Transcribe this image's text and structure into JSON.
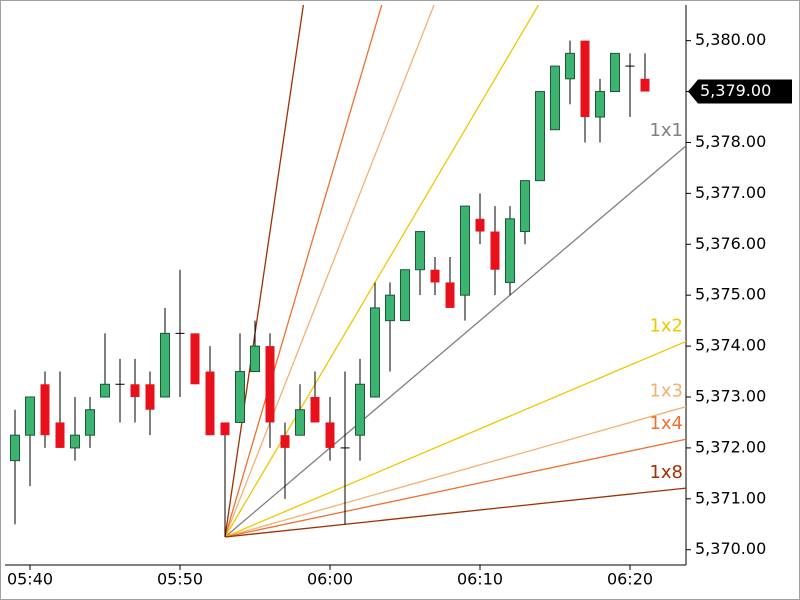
{
  "chart_data": {
    "type": "candlestick",
    "categories": [
      null,
      "05:40",
      null,
      null,
      null,
      null,
      null,
      null,
      null,
      null,
      null,
      "05:50",
      null,
      null,
      null,
      null,
      null,
      null,
      null,
      null,
      null,
      "06:00",
      null,
      null,
      null,
      null,
      null,
      null,
      null,
      null,
      null,
      "06:10",
      null,
      null,
      null,
      null,
      null,
      null,
      null,
      null,
      null,
      "06:20",
      null
    ],
    "open": [
      5371.75,
      5372.25,
      5373.25,
      5372.5,
      5372.0,
      5372.25,
      5373.0,
      5373.25,
      5373.25,
      5373.25,
      5373.0,
      5374.25,
      5374.25,
      5373.5,
      5372.5,
      5372.5,
      5373.5,
      5374.0,
      5372.25,
      5372.25,
      5373.0,
      5372.5,
      5372.0,
      5372.25,
      5373.0,
      5374.5,
      5374.5,
      5375.5,
      5375.5,
      5375.25,
      5375.0,
      5376.5,
      5376.25,
      5375.25,
      5376.25,
      5377.25,
      5378.25,
      5379.25,
      5380.0,
      5378.5,
      5379.0,
      5379.5,
      5379.25
    ],
    "high": [
      5372.75,
      5373.0,
      5373.5,
      5373.5,
      5373.0,
      5373.0,
      5374.25,
      5373.75,
      5373.75,
      5373.5,
      5374.75,
      5375.5,
      5374.25,
      5374.0,
      5372.5,
      5374.25,
      5374.5,
      5374.25,
      5372.5,
      5373.25,
      5373.5,
      5373.0,
      5373.5,
      5373.75,
      5375.25,
      5375.25,
      5375.5,
      5376.25,
      5375.75,
      5375.75,
      5376.75,
      5377.0,
      5376.75,
      5376.75,
      5377.25,
      5379.0,
      5379.5,
      5380.0,
      5380.0,
      5379.25,
      5379.75,
      5379.75,
      5379.75
    ],
    "low": [
      5370.5,
      5371.25,
      5372.0,
      5372.0,
      5371.75,
      5372.0,
      5373.0,
      5372.5,
      5372.5,
      5372.25,
      5373.0,
      5373.0,
      5373.25,
      5372.25,
      5370.25,
      5372.5,
      5373.5,
      5372.0,
      5371.0,
      5372.25,
      5372.5,
      5371.75,
      5370.5,
      5371.75,
      5373.0,
      5373.5,
      5374.5,
      5375.0,
      5375.0,
      5374.75,
      5374.5,
      5376.0,
      5375.0,
      5375.0,
      5376.0,
      5377.25,
      5378.25,
      5378.75,
      5378.0,
      5378.0,
      5379.0,
      5378.5,
      5379.0
    ],
    "close": [
      5372.25,
      5373.0,
      5372.25,
      5372.0,
      5372.25,
      5372.75,
      5373.25,
      5373.25,
      5373.0,
      5372.75,
      5374.25,
      5374.25,
      5373.25,
      5372.25,
      5372.25,
      5373.5,
      5374.0,
      5372.5,
      5372.0,
      5372.75,
      5372.5,
      5372.0,
      5372.0,
      5373.25,
      5374.75,
      5375.0,
      5375.5,
      5376.25,
      5375.25,
      5374.75,
      5376.75,
      5376.25,
      5375.5,
      5376.5,
      5377.25,
      5379.0,
      5379.5,
      5379.75,
      5378.5,
      5379.0,
      5379.75,
      5379.5,
      5379.0
    ],
    "up_color": "#3cb371",
    "down_color": "#e8101a",
    "ylim": [
      5369.7,
      5380.7
    ],
    "yticks": [
      {
        "value": 5370,
        "label": "5,370.00"
      },
      {
        "value": 5371,
        "label": "5,371.00"
      },
      {
        "value": 5372,
        "label": "5,372.00"
      },
      {
        "value": 5373,
        "label": "5,373.00"
      },
      {
        "value": 5374,
        "label": "5,374.00"
      },
      {
        "value": 5375,
        "label": "5,375.00"
      },
      {
        "value": 5376,
        "label": "5,376.00"
      },
      {
        "value": 5377,
        "label": "5,377.00"
      },
      {
        "value": 5378,
        "label": "5,378.00"
      },
      {
        "value": 5379,
        "label": "5,379.00"
      },
      {
        "value": 5380,
        "label": "5,380.00"
      }
    ],
    "last_price": {
      "value": 5379,
      "label": "5,379.00"
    },
    "grid": false,
    "gann_fan": {
      "origin_index": 14,
      "origin_value": 5370.25,
      "lines": [
        {
          "name": "1x1",
          "slope": 0.25,
          "color": "#808080"
        },
        {
          "name": "1x2",
          "slope": 0.125,
          "color": "#f0c800"
        },
        {
          "name": "1x3",
          "slope": 0.0833,
          "color": "#f5b070"
        },
        {
          "name": "1x4",
          "slope": 0.0625,
          "color": "#f07030"
        },
        {
          "name": "1x8",
          "slope": 0.03125,
          "color": "#a03000"
        },
        {
          "slope": 0.5,
          "color": "#f0c800"
        },
        {
          "slope": 0.75,
          "color": "#f5b070"
        },
        {
          "slope": 1,
          "color": "#f07030"
        },
        {
          "slope": 2,
          "color": "#a03000"
        }
      ]
    }
  }
}
